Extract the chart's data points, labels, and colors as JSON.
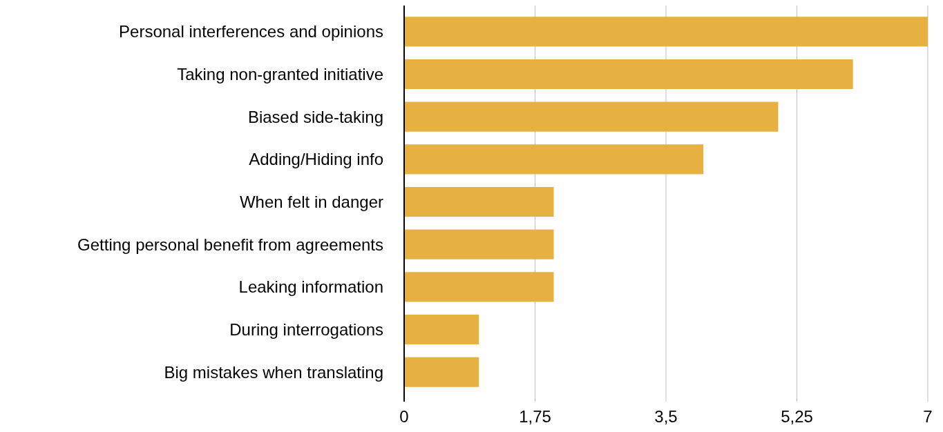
{
  "chart_data": {
    "type": "bar",
    "orientation": "horizontal",
    "categories": [
      "Personal interferences and opinions",
      "Taking non-granted initiative",
      "Biased side-taking",
      "Adding/Hiding info",
      "When felt in danger",
      "Getting personal benefit from agreements",
      "Leaking information",
      "During interrogations",
      "Big mistakes when translating"
    ],
    "values": [
      7,
      6,
      5,
      4,
      2,
      2,
      2,
      1,
      1
    ],
    "color": "#e6b140",
    "xlim": [
      0,
      7
    ],
    "xticks": [
      0,
      {
        "value": 1.75,
        "label": "1,75"
      },
      {
        "value": 3.5,
        "label": "3,5"
      },
      {
        "value": 5.25,
        "label": "5,25"
      },
      7
    ],
    "grid": "x"
  }
}
